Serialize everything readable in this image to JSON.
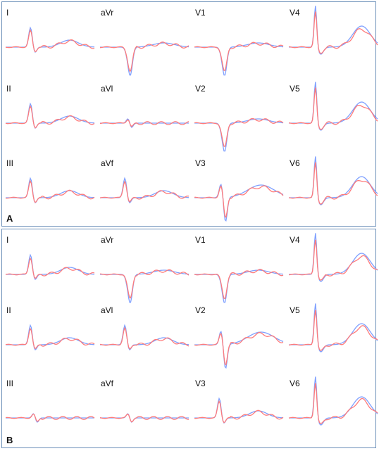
{
  "panels": [
    {
      "id": "A",
      "letter": "A",
      "leads": [
        "I",
        "aVr",
        "V1",
        "V4",
        "II",
        "aVl",
        "V2",
        "V5",
        "III",
        "aVf",
        "V3",
        "V6"
      ]
    },
    {
      "id": "B",
      "letter": "B",
      "leads": [
        "I",
        "aVr",
        "V1",
        "V4",
        "II",
        "aVl",
        "V2",
        "V5",
        "III",
        "aVf",
        "V3",
        "V6"
      ]
    }
  ],
  "colors": {
    "blue": "#7fa0ff",
    "red": "#ff7b7b",
    "border": "#6b8fb8"
  }
}
